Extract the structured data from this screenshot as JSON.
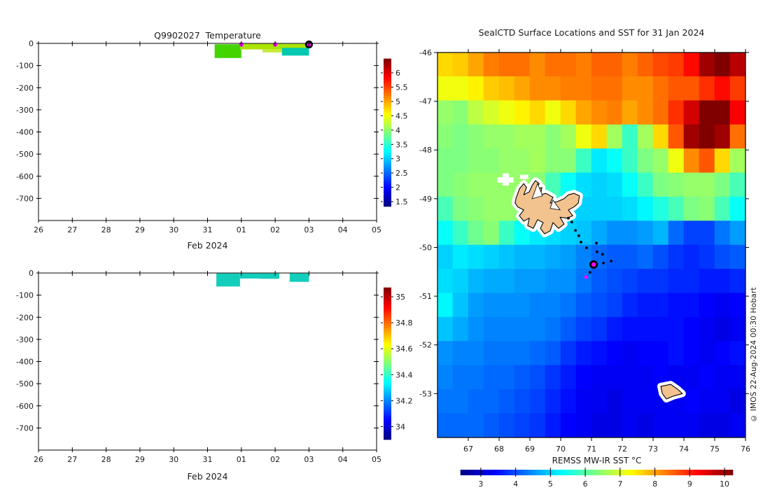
{
  "figure": {
    "background": "#ffffff",
    "credit": "© IMOS 22-Aug-2024 00:30 Hobart"
  },
  "temperature_panel": {
    "title": "Q9902027  Temperature",
    "xlabel": "Feb 2024",
    "x_tick_labels": [
      "26",
      "27",
      "28",
      "29",
      "30",
      "31",
      "01",
      "02",
      "03",
      "04",
      "05"
    ],
    "y_tick_labels": [
      "0",
      "-100",
      "-200",
      "-300",
      "-400",
      "-500",
      "-600",
      "-700"
    ],
    "colorbar_tick_labels": [
      "1.5",
      "2",
      "2.5",
      "3",
      "3.5",
      "4",
      "4.5",
      "5",
      "5.5",
      "6"
    ]
  },
  "salinity_panel": {
    "xlabel": "Feb 2024",
    "x_tick_labels": [
      "26",
      "27",
      "28",
      "29",
      "30",
      "31",
      "01",
      "02",
      "03",
      "04",
      "05"
    ],
    "y_tick_labels": [
      "0",
      "-100",
      "-200",
      "-300",
      "-400",
      "-500",
      "-600",
      "-700"
    ],
    "colorbar_tick_labels": [
      "34",
      "34.2",
      "34.4",
      "34.6",
      "34.8",
      "35"
    ]
  },
  "map_panel": {
    "title": "SealCTD Surface Locations and SST for 31 Jan 2024",
    "x_tick_labels": [
      "67",
      "68",
      "69",
      "70",
      "71",
      "72",
      "73",
      "74",
      "75",
      "76"
    ],
    "y_tick_labels": [
      "-46",
      "-47",
      "-48",
      "-49",
      "-50",
      "-51",
      "-52",
      "-53"
    ],
    "colorbar_label": "REMSS MW-IR SST °C",
    "colorbar_tick_labels": [
      "3",
      "4",
      "5",
      "6",
      "7",
      "8",
      "9",
      "10"
    ]
  },
  "chart_data": [
    {
      "type": "heatmap",
      "name": "temperature_depth_time",
      "title": "Q9902027  Temperature",
      "xlabel": "Feb 2024",
      "x_axis_days": [
        "26 Jan 2024",
        "05 Feb 2024"
      ],
      "xlim_days": [
        0,
        10
      ],
      "ylim_m": [
        0,
        -800
      ],
      "colorbar": {
        "min": 1.33,
        "max": 6.49,
        "ticks": [
          1.5,
          2,
          2.5,
          3,
          3.5,
          4,
          4.5,
          5,
          5.5,
          6
        ]
      },
      "patches": [
        {
          "day0": 5.21,
          "day1": 6.0,
          "depth0": 4,
          "depth1": 66,
          "color": "#44d500",
          "approx_temp_c": 4.2
        },
        {
          "day0": 5.96,
          "day1": 7.97,
          "depth0": 2,
          "depth1": 27,
          "color": "#aae400",
          "approx_temp_c": 4.6
        },
        {
          "day0": 6.63,
          "day1": 7.25,
          "depth0": 27,
          "depth1": 41,
          "color": "#c9ec3e",
          "approx_temp_c": 4.7
        },
        {
          "day0": 7.2,
          "day1": 8.0,
          "depth0": 20,
          "depth1": 55,
          "color": "#00c9b0",
          "approx_temp_c": 3.4
        }
      ],
      "surface_dots_day": [
        6,
        7
      ],
      "current_dot_day": 8,
      "dot_color": "#ff00ff"
    },
    {
      "type": "heatmap",
      "name": "salinity_depth_time",
      "xlabel": "Feb 2024",
      "xlim_days": [
        0,
        10
      ],
      "ylim_m": [
        0,
        -800
      ],
      "colorbar": {
        "min": 33.9,
        "max": 35.07,
        "ticks": [
          34,
          34.2,
          34.4,
          34.6,
          34.8,
          35
        ]
      },
      "patches": [
        {
          "day0": 5.26,
          "day1": 5.96,
          "depth0": 2,
          "depth1": 61,
          "color": "#14cebc",
          "approx_salinity": 34.25
        },
        {
          "day0": 5.96,
          "day1": 7.12,
          "depth0": 2,
          "depth1": 25,
          "color": "#14cebc",
          "approx_salinity": 34.25
        },
        {
          "day0": 6.56,
          "day1": 7.12,
          "depth0": 12,
          "depth1": 26,
          "color": "#14cebc",
          "approx_salinity": 34.25
        },
        {
          "day0": 7.43,
          "day1": 8.0,
          "depth0": 2,
          "depth1": 40,
          "color": "#14cebc",
          "approx_salinity": 34.25
        }
      ],
      "surface_dots_day": [],
      "current_dot_day": null,
      "dot_color": "#ff00ff"
    },
    {
      "type": "heatmap",
      "name": "sst_map",
      "title": "SealCTD Surface Locations and SST for 31 Jan 2024",
      "lon_range": [
        66,
        76
      ],
      "lat_range": [
        -46,
        -53.86
      ],
      "colorbar": {
        "min": 2.42,
        "max": 10.24,
        "ticks": [
          3,
          4,
          5,
          6,
          7,
          8,
          9,
          10
        ],
        "label": "REMSS MW-IR SST °C"
      },
      "grid": {
        "lon0": 66,
        "lat0": -46,
        "dlon": 0.5,
        "dlat": -0.5,
        "values": [
          [
            7.6,
            7.7,
            8.0,
            8.3,
            8.4,
            8.4,
            8.2,
            8.4,
            8.4,
            8.3,
            8.5,
            8.5,
            8.3,
            8.5,
            8.7,
            8.8,
            9.2,
            10.0,
            10.3,
            9.8
          ],
          [
            7.2,
            7.2,
            7.4,
            7.7,
            7.8,
            8.0,
            8.2,
            8.2,
            8.3,
            8.3,
            8.4,
            8.4,
            8.2,
            8.2,
            8.4,
            8.6,
            8.6,
            8.9,
            9.2,
            8.8
          ],
          [
            6.5,
            6.4,
            6.8,
            7.0,
            7.2,
            7.4,
            7.6,
            7.2,
            7.6,
            8.0,
            8.2,
            8.3,
            8.0,
            8.2,
            8.4,
            8.9,
            9.6,
            10.3,
            10.4,
            9.3
          ],
          [
            6.4,
            6.3,
            6.4,
            6.5,
            6.5,
            6.6,
            6.6,
            6.4,
            6.6,
            7.2,
            7.6,
            6.6,
            5.8,
            6.6,
            7.6,
            8.6,
            10.0,
            10.5,
            10.0,
            8.4
          ],
          [
            6.3,
            6.3,
            6.4,
            6.4,
            6.5,
            6.5,
            6.6,
            6.4,
            6.4,
            5.8,
            5.2,
            5.4,
            5.8,
            6.3,
            6.5,
            7.2,
            8.2,
            8.6,
            7.6,
            6.6
          ],
          [
            6.3,
            6.4,
            6.5,
            6.5,
            6.5,
            6.5,
            6.4,
            5.9,
            5.4,
            5.1,
            5.0,
            5.1,
            5.4,
            5.8,
            6.3,
            6.4,
            6.5,
            6.5,
            6.3,
            5.9
          ],
          [
            5.9,
            6.3,
            6.4,
            6.5,
            6.5,
            6.4,
            5.9,
            5.4,
            5.1,
            5.0,
            5.0,
            5.0,
            5.1,
            5.3,
            5.6,
            5.9,
            6.3,
            6.4,
            5.9,
            5.4
          ],
          [
            5.4,
            5.8,
            6.2,
            6.4,
            5.8,
            5.4,
            5.2,
            5.1,
            5.0,
            4.9,
            4.7,
            4.5,
            4.5,
            4.6,
            4.8,
            4.2,
            3.9,
            3.9,
            4.3,
            4.6
          ],
          [
            5.0,
            5.2,
            5.1,
            5.0,
            4.9,
            4.8,
            4.8,
            4.7,
            4.6,
            4.4,
            4.2,
            4.1,
            4.1,
            4.2,
            4.0,
            3.8,
            3.7,
            3.8,
            4.0,
            4.1
          ],
          [
            5.1,
            5.0,
            4.8,
            4.7,
            4.7,
            4.6,
            4.6,
            4.5,
            4.5,
            4.3,
            4.1,
            4.0,
            3.9,
            3.8,
            3.8,
            3.7,
            3.7,
            3.6,
            3.6,
            3.7
          ],
          [
            5.3,
            4.9,
            4.6,
            4.5,
            4.5,
            4.5,
            4.4,
            4.4,
            4.3,
            4.1,
            4.0,
            3.9,
            3.7,
            3.6,
            3.6,
            3.5,
            3.5,
            3.4,
            3.3,
            3.4
          ],
          [
            4.9,
            4.7,
            4.5,
            4.4,
            4.4,
            4.4,
            4.4,
            4.3,
            4.1,
            3.9,
            3.8,
            3.6,
            3.5,
            3.5,
            3.5,
            3.5,
            3.4,
            3.3,
            3.2,
            3.3
          ],
          [
            4.5,
            4.4,
            4.4,
            4.3,
            4.3,
            4.3,
            4.2,
            4.1,
            3.8,
            3.6,
            3.5,
            3.4,
            3.3,
            3.4,
            3.4,
            3.5,
            3.4,
            3.3,
            3.4,
            3.5
          ],
          [
            4.4,
            4.3,
            4.3,
            4.2,
            4.2,
            4.1,
            4.0,
            3.8,
            3.6,
            3.4,
            3.3,
            3.3,
            3.3,
            3.3,
            3.4,
            3.3,
            3.3,
            3.4,
            3.3,
            3.3
          ],
          [
            4.3,
            4.3,
            4.2,
            4.2,
            4.1,
            4.0,
            3.9,
            3.7,
            3.5,
            3.3,
            3.3,
            3.2,
            3.3,
            3.3,
            3.3,
            3.3,
            3.4,
            3.3,
            3.3,
            3.2
          ],
          [
            4.2,
            4.2,
            4.2,
            4.1,
            4.0,
            3.9,
            3.8,
            3.6,
            3.4,
            3.3,
            3.2,
            3.2,
            3.3,
            3.2,
            3.3,
            3.3,
            3.3,
            3.2,
            3.2,
            3.3
          ]
        ]
      },
      "track_lonlat": [
        [
          70.25,
          -49.4
        ],
        [
          70.36,
          -49.48
        ],
        [
          70.48,
          -49.65
        ],
        [
          70.59,
          -49.76
        ],
        [
          70.66,
          -49.89
        ],
        [
          70.84,
          -50.01
        ],
        [
          71.16,
          -49.91
        ],
        [
          71.18,
          -50.09
        ],
        [
          71.36,
          -50.14
        ],
        [
          71.39,
          -50.32
        ],
        [
          71.64,
          -50.28
        ],
        [
          70.95,
          -50.51
        ]
      ],
      "current_location": {
        "lon": 71.07,
        "lat": -50.35,
        "color": "#ff00ff"
      },
      "previous_location": {
        "lon": 70.82,
        "lat": -50.61,
        "color": "#ff00ff"
      },
      "islands": [
        {
          "name": "Kerguelen",
          "fill": "#f2c28f",
          "outline": [
            [
              68.55,
              -48.99
            ],
            [
              68.66,
              -48.8
            ],
            [
              68.8,
              -48.69
            ],
            [
              68.89,
              -48.77
            ],
            [
              68.8,
              -48.92
            ],
            [
              68.98,
              -48.86
            ],
            [
              69.07,
              -48.73
            ],
            [
              69.18,
              -48.63
            ],
            [
              69.3,
              -48.69
            ],
            [
              69.2,
              -48.83
            ],
            [
              69.39,
              -48.77
            ],
            [
              69.34,
              -48.92
            ],
            [
              69.52,
              -48.89
            ],
            [
              69.75,
              -48.97
            ],
            [
              69.66,
              -49.09
            ],
            [
              69.89,
              -49.06
            ],
            [
              70.11,
              -49.0
            ],
            [
              70.25,
              -48.92
            ],
            [
              70.43,
              -48.89
            ],
            [
              70.61,
              -48.94
            ],
            [
              70.57,
              -49.09
            ],
            [
              70.43,
              -49.17
            ],
            [
              70.25,
              -49.23
            ],
            [
              70.39,
              -49.35
            ],
            [
              70.2,
              -49.4
            ],
            [
              69.98,
              -49.38
            ],
            [
              70.11,
              -49.52
            ],
            [
              69.93,
              -49.61
            ],
            [
              69.75,
              -49.49
            ],
            [
              69.66,
              -49.66
            ],
            [
              69.48,
              -49.72
            ],
            [
              69.34,
              -49.61
            ],
            [
              69.43,
              -49.49
            ],
            [
              69.25,
              -49.43
            ],
            [
              69.11,
              -49.61
            ],
            [
              68.93,
              -49.55
            ],
            [
              68.98,
              -49.4
            ],
            [
              68.8,
              -49.46
            ],
            [
              68.66,
              -49.35
            ],
            [
              68.8,
              -49.23
            ],
            [
              68.61,
              -49.17
            ],
            [
              68.52,
              -49.09
            ]
          ]
        },
        {
          "name": "Heard",
          "fill": "#f2c28f",
          "outline": [
            [
              73.25,
              -52.85
            ],
            [
              73.57,
              -52.81
            ],
            [
              73.8,
              -52.91
            ],
            [
              73.95,
              -53.0
            ],
            [
              73.66,
              -53.05
            ],
            [
              73.43,
              -53.11
            ],
            [
              73.3,
              -53.0
            ]
          ]
        }
      ],
      "island_fjords": [
        [
          [
            69.25,
            -48.69
          ],
          [
            69.41,
            -48.94
          ],
          [
            69.07,
            -49.0
          ]
        ],
        [
          [
            69.75,
            -49.03
          ],
          [
            69.98,
            -49.23
          ],
          [
            69.66,
            -49.2
          ]
        ]
      ],
      "mask_rects_lonlat": [
        {
          "lon0": 68.11,
          "lat0": -48.48,
          "lon1": 68.32,
          "lat1": -48.73
        },
        {
          "lon0": 67.95,
          "lat0": -48.56,
          "lon1": 68.47,
          "lat1": -48.67
        },
        {
          "lon0": 68.68,
          "lat0": -48.51,
          "lon1": 68.95,
          "lat1": -48.6
        }
      ]
    }
  ]
}
